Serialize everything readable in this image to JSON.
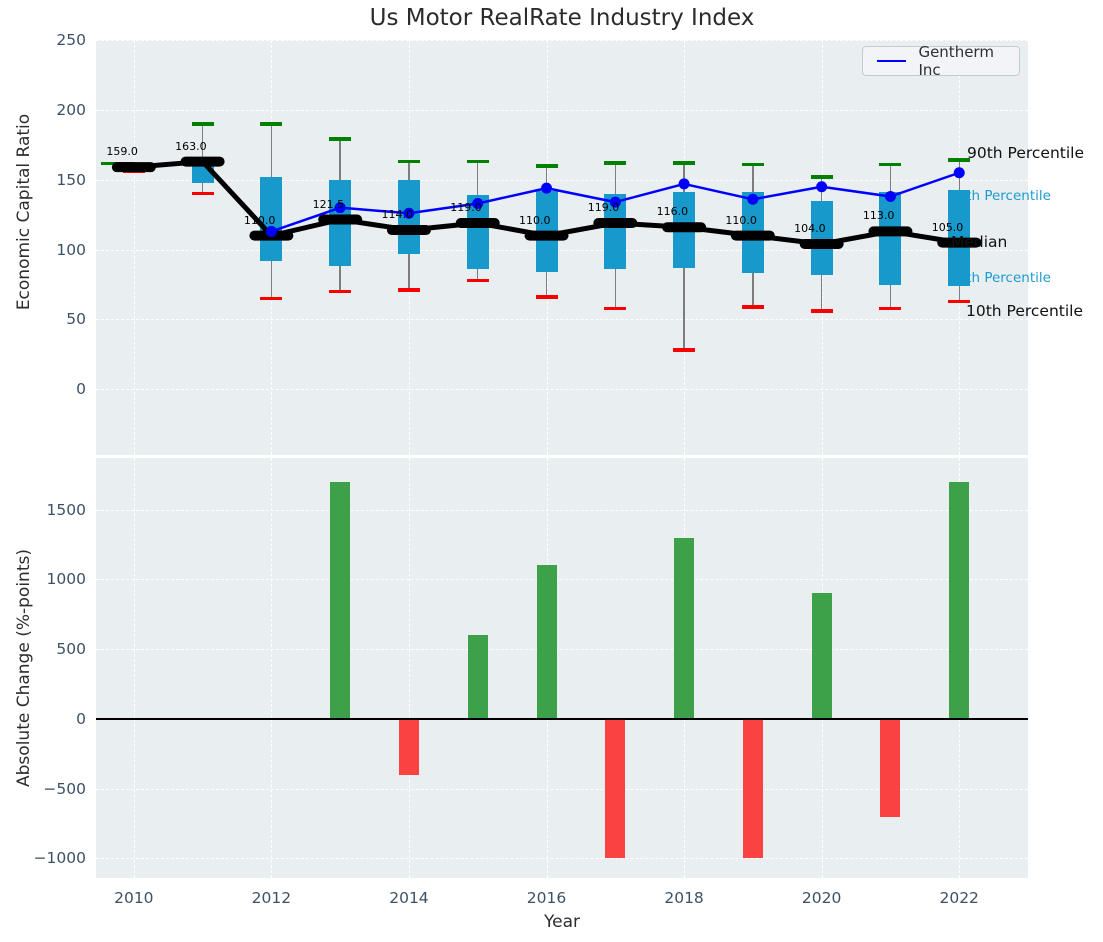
{
  "title": "Us Motor RealRate Industry Index",
  "legend": {
    "label": "Gentherm Inc",
    "line_color": "#0000ff"
  },
  "colors": {
    "plot_bg": "#e9eef0",
    "grid": "#ffffff",
    "box": "#1899cc",
    "whisker": "#7d7d7d",
    "cap_top": "#008000",
    "cap_bottom": "#f80000",
    "median_line": "#000000",
    "company_line": "#0000ff",
    "bar_up": "#3da14a",
    "bar_down": "#fb4242",
    "tick_text": "#3d5166",
    "cyan_label": "#1b9cd0"
  },
  "chart_data": [
    {
      "type": "boxplot+line",
      "title": "Us Motor RealRate Industry Index",
      "ylabel": "Economic Capital Ratio",
      "years": [
        2010,
        2011,
        2012,
        2013,
        2014,
        2015,
        2016,
        2017,
        2018,
        2019,
        2020,
        2021,
        2022
      ],
      "median": [
        159,
        163,
        110,
        121.5,
        114,
        119,
        110,
        119,
        116,
        110,
        104,
        113,
        105
      ],
      "median_labels": [
        "159.0",
        "163.0",
        "110.0",
        "121.5",
        "114.0",
        "119.0",
        "110.0",
        "119.0",
        "116.0",
        "110.0",
        "104.0",
        "113.0",
        "105.0"
      ],
      "q25": [
        157.5,
        148,
        92,
        88,
        97,
        86,
        84,
        86,
        87,
        83,
        82,
        75,
        74
      ],
      "q75": [
        160.5,
        165,
        152,
        150,
        150,
        139,
        142,
        140,
        141,
        141,
        135,
        141,
        143
      ],
      "p10": [
        156,
        140,
        65,
        70,
        71,
        78,
        66,
        58,
        28,
        59,
        56,
        58,
        63
      ],
      "p90": [
        161.5,
        190,
        190,
        179,
        163,
        163,
        160,
        162,
        162,
        161,
        152,
        161,
        164
      ],
      "series": [
        {
          "name": "Gentherm Inc",
          "years": [
            2012,
            2013,
            2014,
            2015,
            2016,
            2017,
            2018,
            2019,
            2020,
            2021,
            2022
          ],
          "values": [
            113,
            130,
            126,
            133,
            144,
            134,
            147,
            136,
            145,
            138,
            155
          ]
        }
      ],
      "annotations": [
        "90th Percentile",
        "75th Percentile",
        "Median",
        "25th Percentile",
        "10th Percentile"
      ],
      "yticks": {
        "values": [
          250,
          200,
          150,
          100,
          50,
          0
        ],
        "labels": [
          "250",
          "200",
          "150",
          "100",
          "50",
          "0"
        ]
      },
      "ylim": [
        -47,
        250
      ],
      "grid": true,
      "legend_position": "upper right"
    },
    {
      "type": "bar",
      "ylabel": "Absolute Change (%-points)",
      "xlabel": "Year",
      "years": [
        2013,
        2014,
        2015,
        2016,
        2017,
        2018,
        2019,
        2020,
        2021,
        2022
      ],
      "values": [
        1700,
        -400,
        600,
        1100,
        -1000,
        1300,
        -1000,
        900,
        -700,
        1700
      ],
      "yticks": {
        "values": [
          1500,
          1000,
          500,
          0,
          -500,
          -1000
        ],
        "labels": [
          "1500",
          "1000",
          "500",
          "0",
          "−500",
          "−1000"
        ]
      },
      "xticks": {
        "values": [
          2010,
          2012,
          2014,
          2016,
          2018,
          2020,
          2022
        ],
        "labels": [
          "2010",
          "2012",
          "2014",
          "2016",
          "2018",
          "2020",
          "2022"
        ]
      },
      "ylim": [
        -1140,
        1870
      ],
      "xlim": [
        2009.45,
        2023.0
      ],
      "grid": true
    }
  ]
}
